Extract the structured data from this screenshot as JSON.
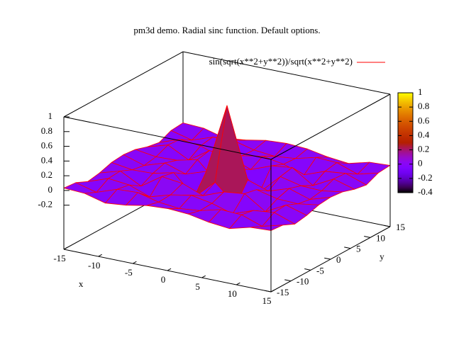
{
  "chart_data": {
    "type": "surface",
    "title": "pm3d demo. Radial sinc function. Default options.",
    "xlabel": "x",
    "ylabel": "y",
    "x": [
      -15,
      -12,
      -9,
      -6,
      -3,
      0,
      3,
      6,
      9,
      12,
      15
    ],
    "y": [
      -15,
      -12,
      -9,
      -6,
      -3,
      0,
      3,
      6,
      9,
      12,
      15
    ],
    "series": [
      {
        "name": "sin(sqrt(x**2+y**2))/sqrt(x**2+y**2)",
        "color": "#ff0000",
        "z": [
          [
            0.033,
            0.018,
            -0.056,
            -0.027,
            0.026,
            0.043,
            0.026,
            -0.027,
            -0.056,
            0.018,
            0.033
          ],
          [
            0.018,
            -0.056,
            0.043,
            0.056,
            -0.016,
            -0.045,
            -0.016,
            0.056,
            0.043,
            -0.056,
            0.018
          ],
          [
            -0.056,
            0.043,
            0.013,
            -0.091,
            -0.006,
            0.046,
            -0.006,
            -0.091,
            0.013,
            0.043,
            -0.056
          ],
          [
            -0.027,
            0.056,
            -0.091,
            0.095,
            0.061,
            -0.047,
            0.061,
            0.095,
            -0.091,
            0.056,
            -0.027
          ],
          [
            0.026,
            -0.016,
            -0.006,
            0.061,
            -0.21,
            0.047,
            -0.21,
            0.061,
            -0.006,
            -0.016,
            0.026
          ],
          [
            0.043,
            -0.045,
            0.046,
            -0.047,
            0.047,
            1,
            0.047,
            -0.047,
            0.046,
            -0.045,
            0.043
          ],
          [
            0.026,
            -0.016,
            -0.006,
            0.061,
            -0.21,
            0.047,
            -0.21,
            0.061,
            -0.006,
            -0.016,
            0.026
          ],
          [
            -0.027,
            0.056,
            -0.091,
            0.095,
            0.061,
            -0.047,
            0.061,
            0.095,
            -0.091,
            0.056,
            -0.027
          ],
          [
            -0.056,
            0.043,
            0.013,
            -0.091,
            -0.006,
            0.046,
            -0.006,
            -0.091,
            0.013,
            0.043,
            -0.056
          ],
          [
            0.018,
            -0.056,
            0.043,
            0.056,
            -0.016,
            -0.045,
            -0.016,
            0.056,
            0.043,
            -0.056,
            0.018
          ],
          [
            0.033,
            0.018,
            -0.056,
            -0.027,
            0.026,
            0.043,
            0.026,
            -0.027,
            -0.056,
            0.018,
            0.033
          ]
        ]
      }
    ],
    "xlim": [
      -15,
      15
    ],
    "xticks": [
      -15,
      -10,
      -5,
      0,
      5,
      10,
      15
    ],
    "ylim": [
      -15,
      15
    ],
    "yticks": [
      -15,
      -10,
      -5,
      0,
      5,
      10,
      15
    ],
    "zlim": [
      -0.2,
      1
    ],
    "zticks": [
      -0.2,
      0,
      0.2,
      0.4,
      0.6,
      0.8,
      1
    ],
    "ticslevel": 0.5,
    "cblim": [
      -0.4,
      1
    ],
    "cbticks": [
      -0.4,
      -0.2,
      0,
      0.2,
      0.4,
      0.6,
      0.8,
      1
    ],
    "legend": "top-right"
  }
}
